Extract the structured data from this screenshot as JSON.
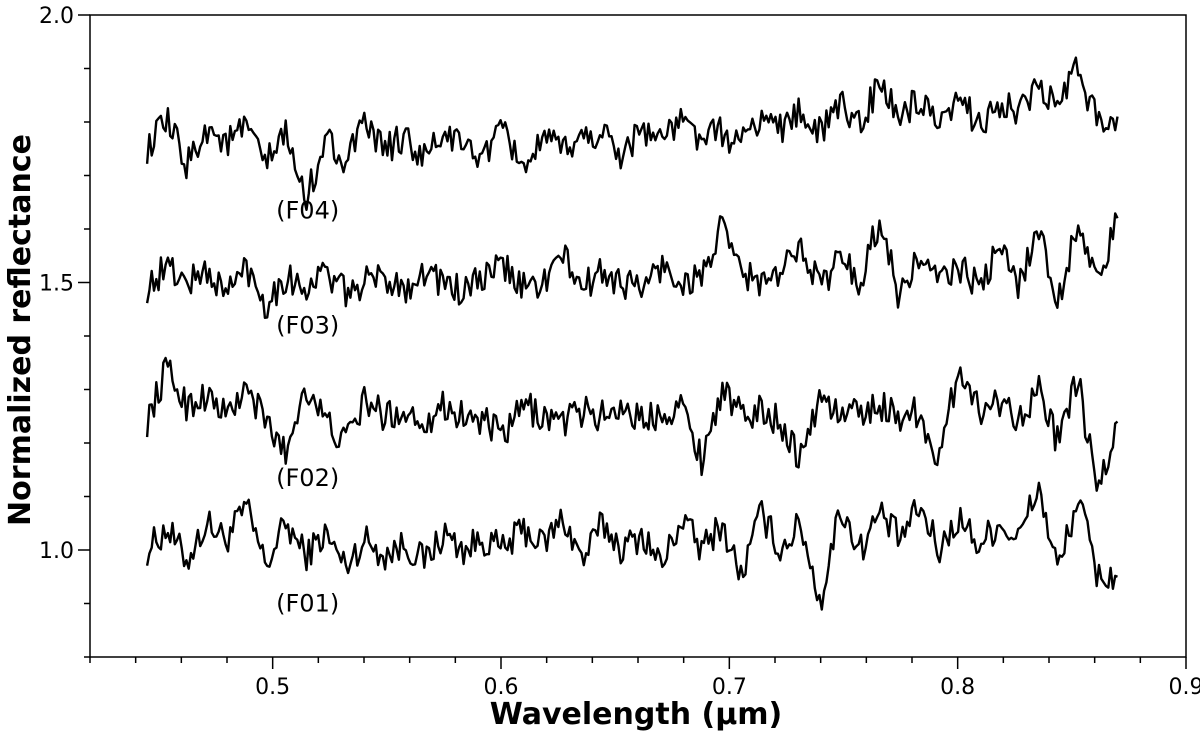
{
  "chart_data": {
    "type": "line",
    "title": "",
    "xlabel": "Wavelength (µm)",
    "ylabel": "Normalized reflectance",
    "xlim": [
      0.42,
      0.9
    ],
    "ylim": [
      0.8,
      2.0
    ],
    "x_ticks": [
      "0.5",
      "0.6",
      "0.7",
      "0.8",
      "0.9"
    ],
    "y_ticks": [
      "1.0",
      "1.5",
      "2.0"
    ],
    "grid": false,
    "x_range": [
      0.445,
      0.87
    ],
    "series": [
      {
        "name": "(F01)",
        "baseline": 1.0,
        "end_value": 0.95,
        "label_x": 0.5,
        "label_y": 0.885,
        "values": [
          1.0,
          1.04,
          0.98,
          1.05,
          1.02,
          1.08,
          0.97,
          1.05,
          0.99,
          1.03,
          0.97,
          1.02,
          0.99,
          1.01,
          0.98,
          1.03,
          1.0,
          1.02,
          1.0,
          1.04,
          1.01,
          1.06,
          0.98,
          1.05,
          1.0,
          1.03,
          0.97,
          1.06,
          1.0,
          1.05,
          0.95,
          1.07,
          1.0,
          1.05,
          0.9,
          1.08,
          1.0,
          1.07,
          1.02,
          1.08,
          1.0,
          1.06,
          1.01,
          1.05,
          1.02,
          1.12,
          0.96,
          1.1,
          0.95,
          0.95
        ]
      },
      {
        "name": "(F02)",
        "baseline": 1.25,
        "end_value": 1.24,
        "label_x": 0.5,
        "label_y": 1.12,
        "values": [
          1.24,
          1.34,
          1.27,
          1.29,
          1.25,
          1.3,
          1.24,
          1.18,
          1.31,
          1.24,
          1.2,
          1.28,
          1.25,
          1.26,
          1.24,
          1.27,
          1.25,
          1.24,
          1.21,
          1.27,
          1.25,
          1.24,
          1.26,
          1.25,
          1.27,
          1.24,
          1.26,
          1.27,
          1.17,
          1.3,
          1.25,
          1.26,
          1.24,
          1.17,
          1.29,
          1.25,
          1.26,
          1.27,
          1.25,
          1.26,
          1.16,
          1.35,
          1.26,
          1.28,
          1.25,
          1.3,
          1.2,
          1.32,
          1.1,
          1.24
        ]
      },
      {
        "name": "(F03)",
        "baseline": 1.5,
        "end_value": 1.62,
        "label_x": 0.5,
        "label_y": 1.405,
        "values": [
          1.49,
          1.53,
          1.5,
          1.52,
          1.48,
          1.53,
          1.46,
          1.51,
          1.49,
          1.52,
          1.48,
          1.5,
          1.51,
          1.49,
          1.52,
          1.5,
          1.48,
          1.51,
          1.53,
          1.49,
          1.5,
          1.55,
          1.49,
          1.52,
          1.5,
          1.49,
          1.53,
          1.5,
          1.51,
          1.6,
          1.52,
          1.5,
          1.51,
          1.58,
          1.49,
          1.55,
          1.5,
          1.62,
          1.47,
          1.55,
          1.5,
          1.53,
          1.49,
          1.56,
          1.5,
          1.6,
          1.46,
          1.62,
          1.49,
          1.62
        ]
      },
      {
        "name": "(F04)",
        "baseline": 1.75,
        "end_value": 1.81,
        "label_x": 0.5,
        "label_y": 1.62,
        "values": [
          1.75,
          1.8,
          1.72,
          1.79,
          1.76,
          1.79,
          1.72,
          1.78,
          1.65,
          1.77,
          1.73,
          1.79,
          1.75,
          1.77,
          1.73,
          1.78,
          1.75,
          1.74,
          1.78,
          1.72,
          1.76,
          1.75,
          1.77,
          1.78,
          1.74,
          1.79,
          1.77,
          1.8,
          1.77,
          1.78,
          1.76,
          1.81,
          1.79,
          1.82,
          1.78,
          1.83,
          1.8,
          1.87,
          1.81,
          1.84,
          1.78,
          1.84,
          1.8,
          1.83,
          1.82,
          1.86,
          1.83,
          1.9,
          1.8,
          1.81
        ]
      }
    ]
  }
}
